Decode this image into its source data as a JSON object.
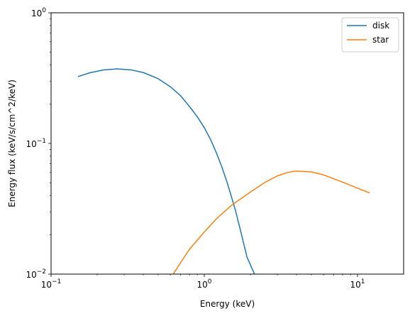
{
  "chart_data": {
    "type": "line",
    "xlabel": "Energy (keV)",
    "ylabel": "Energy flux (keV/s/cm^2/keV)",
    "xscale": "log",
    "yscale": "log",
    "xlim": [
      0.1,
      20
    ],
    "ylim": [
      0.01,
      1
    ],
    "x_ticks": [
      {
        "value": 0.1,
        "base": "10",
        "exp": "−1"
      },
      {
        "value": 1,
        "base": "10",
        "exp": "0"
      },
      {
        "value": 10,
        "base": "10",
        "exp": "1"
      }
    ],
    "y_ticks": [
      {
        "value": 0.01,
        "base": "10",
        "exp": "−2"
      },
      {
        "value": 0.1,
        "base": "10",
        "exp": "−1"
      },
      {
        "value": 1,
        "base": "10",
        "exp": "0"
      }
    ],
    "grid": false,
    "legend_position": "top-right",
    "series": [
      {
        "name": "disk",
        "color": "#1f77b4",
        "points": [
          [
            0.15,
            0.325
          ],
          [
            0.18,
            0.348
          ],
          [
            0.22,
            0.365
          ],
          [
            0.27,
            0.372
          ],
          [
            0.33,
            0.366
          ],
          [
            0.4,
            0.349
          ],
          [
            0.5,
            0.313
          ],
          [
            0.6,
            0.272
          ],
          [
            0.7,
            0.232
          ],
          [
            0.8,
            0.192
          ],
          [
            0.9,
            0.16
          ],
          [
            1.0,
            0.132
          ],
          [
            1.1,
            0.107
          ],
          [
            1.2,
            0.0845
          ],
          [
            1.3,
            0.0665
          ],
          [
            1.4,
            0.0515
          ],
          [
            1.5,
            0.0395
          ],
          [
            1.6,
            0.0305
          ],
          [
            1.7,
            0.023
          ],
          [
            1.8,
            0.0175
          ],
          [
            1.9,
            0.0135
          ],
          [
            2.0,
            0.0118
          ],
          [
            2.15,
            0.0097
          ]
        ]
      },
      {
        "name": "star",
        "color": "#ff7f0e",
        "points": [
          [
            0.62,
            0.0098
          ],
          [
            0.7,
            0.0122
          ],
          [
            0.8,
            0.0155
          ],
          [
            1.0,
            0.021
          ],
          [
            1.2,
            0.0265
          ],
          [
            1.5,
            0.0335
          ],
          [
            2.0,
            0.0425
          ],
          [
            2.5,
            0.0505
          ],
          [
            3.0,
            0.0565
          ],
          [
            3.5,
            0.06
          ],
          [
            4.0,
            0.0615
          ],
          [
            5.0,
            0.0605
          ],
          [
            6.0,
            0.0575
          ],
          [
            8.0,
            0.0505
          ],
          [
            10.0,
            0.0455
          ],
          [
            12.0,
            0.0418
          ]
        ]
      }
    ]
  }
}
